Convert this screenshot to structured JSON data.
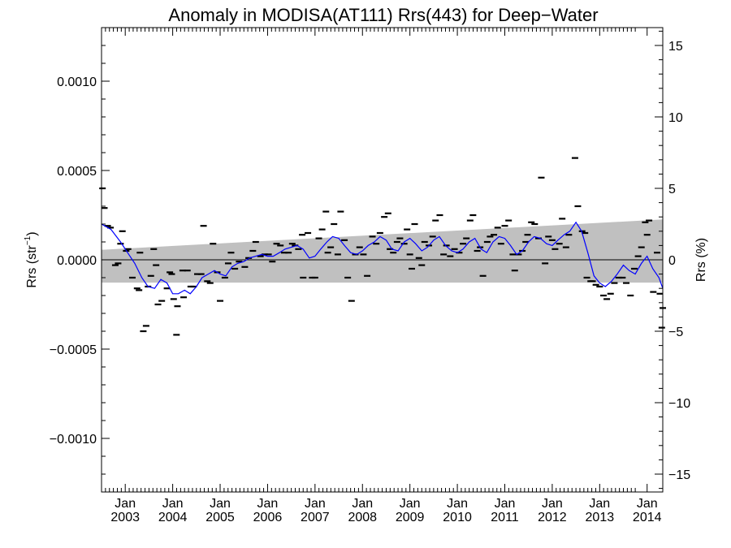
{
  "chart_data": {
    "type": "line",
    "title": "Anomaly in MODISA(AT111) Rrs(443) for Deep−Water",
    "ylabel_left_main": "Rrs (str",
    "ylabel_left_sup": "−1",
    "ylabel_left_close": ")",
    "ylabel_right": "Rrs (%)",
    "xlim": [
      2002.5,
      2014.33
    ],
    "ylim_left": [
      -0.0013,
      0.0013
    ],
    "ylim_right": [
      -16.25,
      16.25
    ],
    "grid": false,
    "legend": "none",
    "colors": {
      "smoothed": "#0000ff",
      "points": "#000000",
      "band": "#c0c0c0",
      "zero": "#000000"
    },
    "left_ticks": [
      {
        "value": 0.001,
        "label": "0.0010"
      },
      {
        "value": 0.0005,
        "label": "0.0005"
      },
      {
        "value": 0.0,
        "label": "0.0000"
      },
      {
        "value": -0.0005,
        "label": "−0.0005"
      },
      {
        "value": -0.001,
        "label": "−0.0010"
      }
    ],
    "right_ticks": [
      {
        "value": 15,
        "label": "15"
      },
      {
        "value": 10,
        "label": "10"
      },
      {
        "value": 5,
        "label": "5"
      },
      {
        "value": 0,
        "label": "0"
      },
      {
        "value": -5,
        "label": "−5"
      },
      {
        "value": -10,
        "label": "−10"
      },
      {
        "value": -15,
        "label": "−15"
      }
    ],
    "x_ticks": [
      {
        "value": 2003,
        "month": "Jan",
        "year": "2003"
      },
      {
        "value": 2004,
        "month": "Jan",
        "year": "2004"
      },
      {
        "value": 2005,
        "month": "Jan",
        "year": "2005"
      },
      {
        "value": 2006,
        "month": "Jan",
        "year": "2006"
      },
      {
        "value": 2007,
        "month": "Jan",
        "year": "2007"
      },
      {
        "value": 2008,
        "month": "Jan",
        "year": "2008"
      },
      {
        "value": 2009,
        "month": "Jan",
        "year": "2009"
      },
      {
        "value": 2010,
        "month": "Jan",
        "year": "2010"
      },
      {
        "value": 2011,
        "month": "Jan",
        "year": "2011"
      },
      {
        "value": 2012,
        "month": "Jan",
        "year": "2012"
      },
      {
        "value": 2013,
        "month": "Jan",
        "year": "2013"
      },
      {
        "value": 2014,
        "month": "Jan",
        "year": "2014"
      }
    ],
    "band": {
      "upper": [
        [
          2002.5,
          5.6e-05
        ],
        [
          2014.33,
          0.000226
        ]
      ],
      "lower": [
        [
          2002.5,
          -0.000128
        ],
        [
          2014.33,
          -0.000128
        ]
      ]
    },
    "points": [
      [
        2002.52,
        0.0004
      ],
      [
        2002.56,
        0.00029
      ],
      [
        2002.63,
        0.00019
      ],
      [
        2002.69,
        0.00018
      ],
      [
        2002.79,
        -3e-05
      ],
      [
        2002.85,
        -2e-05
      ],
      [
        2002.9,
        9e-05
      ],
      [
        2002.94,
        0.00016
      ],
      [
        2003.02,
        5e-05
      ],
      [
        2003.06,
        6e-05
      ],
      [
        2003.15,
        -0.0001
      ],
      [
        2003.25,
        -0.00016
      ],
      [
        2003.29,
        -0.00017
      ],
      [
        2003.31,
        4e-05
      ],
      [
        2003.38,
        -0.0004
      ],
      [
        2003.44,
        -0.00037
      ],
      [
        2003.48,
        -0.00015
      ],
      [
        2003.54,
        -9e-05
      ],
      [
        2003.6,
        6e-05
      ],
      [
        2003.65,
        -3e-05
      ],
      [
        2003.69,
        -0.00025
      ],
      [
        2003.77,
        -0.00023
      ],
      [
        2003.88,
        -0.00016
      ],
      [
        2003.94,
        -7e-05
      ],
      [
        2003.98,
        -8e-05
      ],
      [
        2004.02,
        -0.00022
      ],
      [
        2004.08,
        -0.00042
      ],
      [
        2004.1,
        -0.00026
      ],
      [
        2004.21,
        -6e-05
      ],
      [
        2004.23,
        -0.00021
      ],
      [
        2004.31,
        -6e-05
      ],
      [
        2004.38,
        -0.00015
      ],
      [
        2004.44,
        -0.00015
      ],
      [
        2004.52,
        -8e-05
      ],
      [
        2004.6,
        -8e-05
      ],
      [
        2004.65,
        0.00019
      ],
      [
        2004.73,
        -0.00012
      ],
      [
        2004.79,
        -0.00013
      ],
      [
        2004.85,
        9e-05
      ],
      [
        2004.94,
        -7e-05
      ],
      [
        2005.0,
        -0.00023
      ],
      [
        2005.1,
        -0.0001
      ],
      [
        2005.17,
        -2e-05
      ],
      [
        2005.23,
        4e-05
      ],
      [
        2005.31,
        -5e-05
      ],
      [
        2005.4,
        -1e-05
      ],
      [
        2005.52,
        -4e-05
      ],
      [
        2005.6,
        1e-05
      ],
      [
        2005.69,
        5e-05
      ],
      [
        2005.75,
        0.0001
      ],
      [
        2005.85,
        2e-05
      ],
      [
        2005.94,
        3e-05
      ],
      [
        2006.02,
        3e-05
      ],
      [
        2006.1,
        -1e-05
      ],
      [
        2006.19,
        9e-05
      ],
      [
        2006.27,
        8e-05
      ],
      [
        2006.35,
        4e-05
      ],
      [
        2006.44,
        4e-05
      ],
      [
        2006.52,
        9e-05
      ],
      [
        2006.58,
        8e-05
      ],
      [
        2006.65,
        6e-05
      ],
      [
        2006.73,
        0.00014
      ],
      [
        2006.75,
        -0.0001
      ],
      [
        2006.85,
        0.00015
      ],
      [
        2006.94,
        -0.0001
      ],
      [
        2007.0,
        -0.0001
      ],
      [
        2007.08,
        0.00012
      ],
      [
        2007.15,
        0.00017
      ],
      [
        2007.23,
        0.00027
      ],
      [
        2007.27,
        4e-05
      ],
      [
        2007.33,
        7e-05
      ],
      [
        2007.4,
        0.0002
      ],
      [
        2007.48,
        3e-05
      ],
      [
        2007.54,
        0.00027
      ],
      [
        2007.62,
        0.00011
      ],
      [
        2007.69,
        -0.0001
      ],
      [
        2007.77,
        -0.00023
      ],
      [
        2007.85,
        3e-05
      ],
      [
        2007.94,
        7e-05
      ],
      [
        2008.02,
        3e-05
      ],
      [
        2008.1,
        -9e-05
      ],
      [
        2008.21,
        0.00013
      ],
      [
        2008.29,
        9e-05
      ],
      [
        2008.37,
        0.00015
      ],
      [
        2008.46,
        0.00024
      ],
      [
        2008.54,
        0.00026
      ],
      [
        2008.58,
        6e-05
      ],
      [
        2008.65,
        4e-05
      ],
      [
        2008.73,
        0.0001
      ],
      [
        2008.79,
        0.00012
      ],
      [
        2008.88,
        9e-05
      ],
      [
        2008.94,
        0.00017
      ],
      [
        2009.0,
        3e-05
      ],
      [
        2009.04,
        -5e-05
      ],
      [
        2009.1,
        0.0002
      ],
      [
        2009.19,
        1e-05
      ],
      [
        2009.25,
        -3e-05
      ],
      [
        2009.31,
        0.0001
      ],
      [
        2009.4,
        8e-05
      ],
      [
        2009.48,
        0.00013
      ],
      [
        2009.54,
        0.00022
      ],
      [
        2009.63,
        0.00025
      ],
      [
        2009.71,
        3e-05
      ],
      [
        2009.77,
        8e-05
      ],
      [
        2009.85,
        2e-05
      ],
      [
        2009.94,
        6e-05
      ],
      [
        2010.04,
        4e-05
      ],
      [
        2010.12,
        9e-05
      ],
      [
        2010.19,
        0.00012
      ],
      [
        2010.27,
        0.00022
      ],
      [
        2010.33,
        0.00025
      ],
      [
        2010.42,
        5e-05
      ],
      [
        2010.48,
        7e-05
      ],
      [
        2010.54,
        -9e-05
      ],
      [
        2010.63,
        0.0001
      ],
      [
        2010.69,
        0.00013
      ],
      [
        2010.77,
        0.00014
      ],
      [
        2010.85,
        0.00018
      ],
      [
        2010.92,
        9e-05
      ],
      [
        2011.0,
        0.00019
      ],
      [
        2011.08,
        0.00022
      ],
      [
        2011.17,
        3e-05
      ],
      [
        2011.21,
        -6e-05
      ],
      [
        2011.29,
        3e-05
      ],
      [
        2011.37,
        5e-05
      ],
      [
        2011.44,
        0.0001
      ],
      [
        2011.48,
        0.00014
      ],
      [
        2011.56,
        0.00021
      ],
      [
        2011.63,
        0.0002
      ],
      [
        2011.71,
        0.00012
      ],
      [
        2011.77,
        0.00046
      ],
      [
        2011.85,
        -2e-05
      ],
      [
        2011.92,
        0.00013
      ],
      [
        2012.0,
        0.00011
      ],
      [
        2012.06,
        6e-05
      ],
      [
        2012.15,
        9e-05
      ],
      [
        2012.21,
        0.00023
      ],
      [
        2012.29,
        7e-05
      ],
      [
        2012.35,
        0.00014
      ],
      [
        2012.48,
        0.00057
      ],
      [
        2012.54,
        0.0003
      ],
      [
        2012.63,
        0.00016
      ],
      [
        2012.69,
        0.00015
      ],
      [
        2012.73,
        -0.0001
      ],
      [
        2012.81,
        -0.00012
      ],
      [
        2012.85,
        -0.00012
      ],
      [
        2012.92,
        -0.00014
      ],
      [
        2013.0,
        -0.00015
      ],
      [
        2013.08,
        -0.0002
      ],
      [
        2013.15,
        -0.00022
      ],
      [
        2013.23,
        -0.00019
      ],
      [
        2013.31,
        -0.00013
      ],
      [
        2013.4,
        -0.0001
      ],
      [
        2013.48,
        -0.0001
      ],
      [
        2013.56,
        -0.00013
      ],
      [
        2013.65,
        -0.0002
      ],
      [
        2013.73,
        -5e-05
      ],
      [
        2013.81,
        2e-05
      ],
      [
        2013.88,
        7e-05
      ],
      [
        2013.96,
        0.00021
      ],
      [
        2014.0,
        0.00014
      ],
      [
        2014.04,
        0.00022
      ],
      [
        2014.13,
        -0.00018
      ],
      [
        2014.21,
        4e-05
      ],
      [
        2014.27,
        -0.00019
      ],
      [
        2014.31,
        -0.00038
      ],
      [
        2014.33,
        -0.00027
      ]
    ],
    "smoothed": [
      [
        2002.5,
        0.0002
      ],
      [
        2002.7,
        0.00017
      ],
      [
        2002.9,
        0.0001
      ],
      [
        2003.05,
        4e-05
      ],
      [
        2003.2,
        -2e-05
      ],
      [
        2003.35,
        -0.0001
      ],
      [
        2003.48,
        -0.00015
      ],
      [
        2003.62,
        -0.00016
      ],
      [
        2003.75,
        -0.00011
      ],
      [
        2003.88,
        -0.00013
      ],
      [
        2004.0,
        -0.00019
      ],
      [
        2004.12,
        -0.00019
      ],
      [
        2004.25,
        -0.00017
      ],
      [
        2004.37,
        -0.00019
      ],
      [
        2004.5,
        -0.00015
      ],
      [
        2004.62,
        -0.0001
      ],
      [
        2004.75,
        -8e-05
      ],
      [
        2004.88,
        -6e-05
      ],
      [
        2005.0,
        -8e-05
      ],
      [
        2005.12,
        -9e-05
      ],
      [
        2005.25,
        -4e-05
      ],
      [
        2005.37,
        -2e-05
      ],
      [
        2005.5,
        -1e-05
      ],
      [
        2005.62,
        1e-05
      ],
      [
        2005.75,
        2e-05
      ],
      [
        2005.88,
        3e-05
      ],
      [
        2006.0,
        2e-05
      ],
      [
        2006.12,
        2e-05
      ],
      [
        2006.25,
        4e-05
      ],
      [
        2006.37,
        6e-05
      ],
      [
        2006.5,
        7e-05
      ],
      [
        2006.62,
        8e-05
      ],
      [
        2006.75,
        6e-05
      ],
      [
        2006.88,
        1e-05
      ],
      [
        2007.0,
        2e-05
      ],
      [
        2007.12,
        6e-05
      ],
      [
        2007.25,
        0.0001
      ],
      [
        2007.37,
        0.00013
      ],
      [
        2007.5,
        0.00012
      ],
      [
        2007.62,
        8e-05
      ],
      [
        2007.75,
        4e-05
      ],
      [
        2007.88,
        3e-05
      ],
      [
        2008.0,
        5e-05
      ],
      [
        2008.12,
        8e-05
      ],
      [
        2008.25,
        0.0001
      ],
      [
        2008.37,
        0.00013
      ],
      [
        2008.5,
        0.00011
      ],
      [
        2008.62,
        6e-05
      ],
      [
        2008.75,
        5e-05
      ],
      [
        2008.88,
        0.0001
      ],
      [
        2009.0,
        0.00012
      ],
      [
        2009.12,
        9e-05
      ],
      [
        2009.25,
        5e-05
      ],
      [
        2009.37,
        7e-05
      ],
      [
        2009.5,
        0.00011
      ],
      [
        2009.62,
        0.00013
      ],
      [
        2009.75,
        8e-05
      ],
      [
        2009.88,
        5e-05
      ],
      [
        2010.0,
        4e-05
      ],
      [
        2010.12,
        6e-05
      ],
      [
        2010.25,
        0.0001
      ],
      [
        2010.37,
        0.00012
      ],
      [
        2010.5,
        6e-05
      ],
      [
        2010.62,
        4e-05
      ],
      [
        2010.75,
        0.0001
      ],
      [
        2010.88,
        0.00013
      ],
      [
        2011.0,
        0.00012
      ],
      [
        2011.12,
        8e-05
      ],
      [
        2011.25,
        3e-05
      ],
      [
        2011.37,
        5e-05
      ],
      [
        2011.5,
        0.0001
      ],
      [
        2011.62,
        0.00013
      ],
      [
        2011.75,
        0.00012
      ],
      [
        2011.88,
        9e-05
      ],
      [
        2012.0,
        8e-05
      ],
      [
        2012.12,
        0.00011
      ],
      [
        2012.25,
        0.00014
      ],
      [
        2012.37,
        0.00016
      ],
      [
        2012.5,
        0.00021
      ],
      [
        2012.62,
        0.00016
      ],
      [
        2012.75,
        4e-05
      ],
      [
        2012.88,
        -9e-05
      ],
      [
        2013.0,
        -0.00013
      ],
      [
        2013.12,
        -0.00015
      ],
      [
        2013.25,
        -0.00012
      ],
      [
        2013.37,
        -8e-05
      ],
      [
        2013.5,
        -3e-05
      ],
      [
        2013.62,
        -6e-05
      ],
      [
        2013.75,
        -8e-05
      ],
      [
        2013.88,
        -2e-05
      ],
      [
        2014.0,
        2e-05
      ],
      [
        2014.12,
        -5e-05
      ],
      [
        2014.25,
        -0.0001
      ],
      [
        2014.33,
        -0.00016
      ]
    ]
  }
}
